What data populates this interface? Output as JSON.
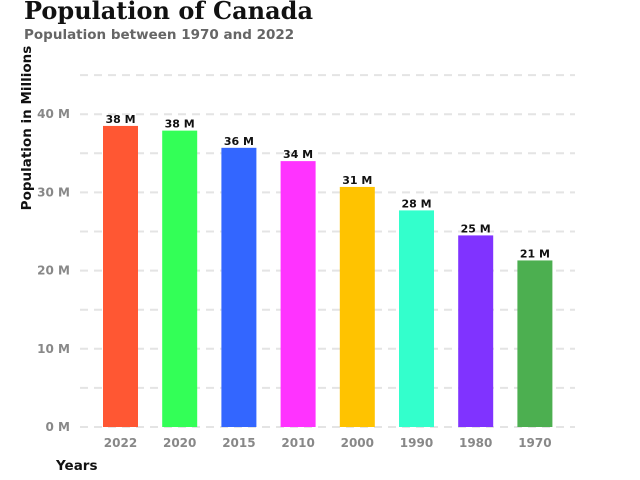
{
  "chart_data": {
    "type": "bar",
    "title": "Population of Canada",
    "subtitle": "Population between 1970 and 2022",
    "xlabel": "Years",
    "ylabel": "Population in Millions",
    "categories": [
      "2022",
      "2020",
      "2015",
      "2010",
      "2000",
      "1990",
      "1980",
      "1970"
    ],
    "values": [
      38.5,
      37.9,
      35.7,
      34.0,
      30.7,
      27.7,
      24.5,
      21.3
    ],
    "value_labels": [
      "38 M",
      "38 M",
      "36 M",
      "34 M",
      "31 M",
      "28 M",
      "25 M",
      "21 M"
    ],
    "colors": [
      "#ff5733",
      "#33ff57",
      "#3366ff",
      "#ff33ff",
      "#ffc300",
      "#33ffcc",
      "#8033ff",
      "#4caf50"
    ],
    "ylim": [
      0,
      45
    ],
    "y_ticks": [
      {
        "value": 0,
        "label": "0 M"
      },
      {
        "value": 10,
        "label": "10 M"
      },
      {
        "value": 20,
        "label": "20 M"
      },
      {
        "value": 30,
        "label": "30 M"
      },
      {
        "value": 40,
        "label": "40 M"
      }
    ],
    "gridlines": [
      5,
      10,
      15,
      20,
      25,
      30,
      35,
      40,
      45
    ],
    "grid": true,
    "grid_color": "#e4e4e4",
    "legend": "none"
  }
}
